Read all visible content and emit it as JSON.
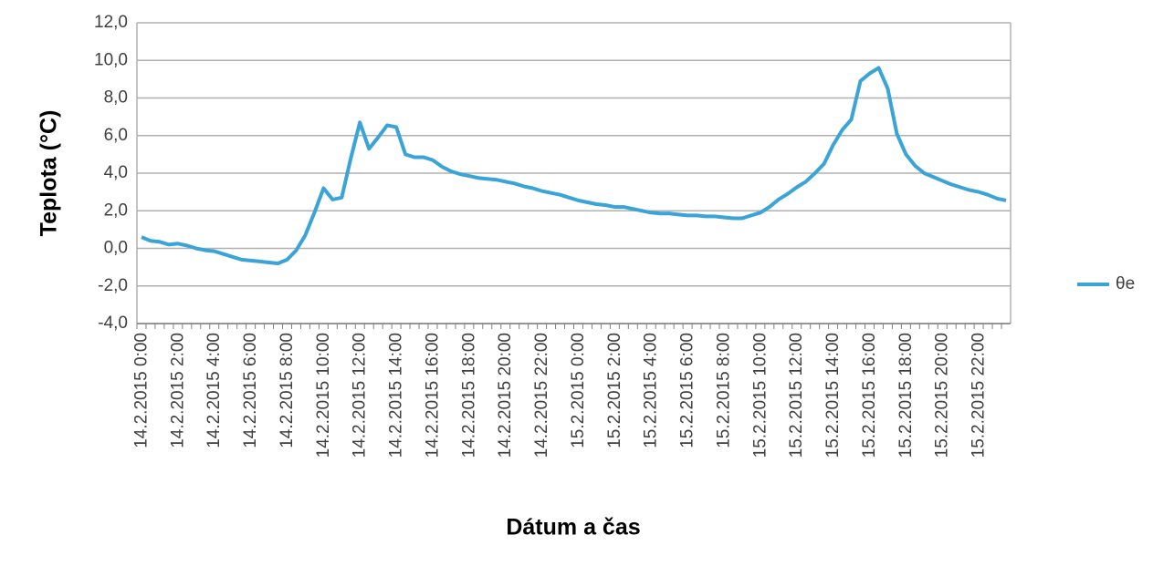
{
  "chart_data": {
    "type": "line",
    "y_label": "Teplota (°C)",
    "x_label": "Dátum a čas",
    "categories": [
      "14.2.2015 0:00",
      null,
      null,
      null,
      "14.2.2015 2:00",
      null,
      null,
      null,
      "14.2.2015 4:00",
      null,
      null,
      null,
      "14.2.2015 6:00",
      null,
      null,
      null,
      "14.2.2015 8:00",
      null,
      null,
      null,
      "14.2.2015 10:00",
      null,
      null,
      null,
      "14.2.2015 12:00",
      null,
      null,
      null,
      "14.2.2015 14:00",
      null,
      null,
      null,
      "14.2.2015 16:00",
      null,
      null,
      null,
      "14.2.2015 18:00",
      null,
      null,
      null,
      "14.2.2015 20:00",
      null,
      null,
      null,
      "14.2.2015 22:00",
      null,
      null,
      null,
      "15.2.2015 0:00",
      null,
      null,
      null,
      "15.2.2015 2:00",
      null,
      null,
      null,
      "15.2.2015 4:00",
      null,
      null,
      null,
      "15.2.2015 6:00",
      null,
      null,
      null,
      "15.2.2015 8:00",
      null,
      null,
      null,
      "15.2.2015 10:00",
      null,
      null,
      null,
      "15.2.2015 12:00",
      null,
      null,
      null,
      "15.2.2015 14:00",
      null,
      null,
      null,
      "15.2.2015 16:00",
      null,
      null,
      null,
      "15.2.2015 18:00",
      null,
      null,
      null,
      "15.2.2015 20:00",
      null,
      null,
      null,
      "15.2.2015 22:00",
      null,
      null,
      null
    ],
    "series": [
      {
        "name": "θe",
        "color": "#3aa3d8",
        "values": [
          0.6,
          0.4,
          0.35,
          0.2,
          0.25,
          0.15,
          0.0,
          -0.1,
          -0.15,
          -0.3,
          -0.45,
          -0.6,
          -0.65,
          -0.7,
          -0.75,
          -0.8,
          -0.6,
          -0.1,
          0.7,
          1.9,
          3.2,
          2.6,
          2.7,
          4.8,
          6.7,
          5.3,
          5.9,
          6.55,
          6.45,
          5.0,
          4.85,
          4.85,
          4.7,
          4.35,
          4.1,
          3.95,
          3.85,
          3.75,
          3.7,
          3.65,
          3.55,
          3.45,
          3.3,
          3.2,
          3.05,
          2.95,
          2.85,
          2.7,
          2.55,
          2.45,
          2.35,
          2.3,
          2.2,
          2.2,
          2.1,
          2.0,
          1.9,
          1.85,
          1.85,
          1.8,
          1.75,
          1.75,
          1.7,
          1.7,
          1.65,
          1.6,
          1.6,
          1.75,
          1.9,
          2.2,
          2.6,
          2.9,
          3.25,
          3.55,
          4.0,
          4.5,
          5.5,
          6.3,
          6.85,
          8.9,
          9.3,
          9.6,
          8.5,
          6.1,
          5.0,
          4.4,
          4.0,
          3.8,
          3.6,
          3.4,
          3.25,
          3.1,
          3.0,
          2.85,
          2.65,
          2.55
        ]
      }
    ],
    "ylim": [
      -4,
      12
    ],
    "yticks": [
      {
        "value": -4,
        "label": "-4,0"
      },
      {
        "value": -2,
        "label": "-2,0"
      },
      {
        "value": 0,
        "label": "0,0"
      },
      {
        "value": 2,
        "label": "2,0"
      },
      {
        "value": 4,
        "label": "4,0"
      },
      {
        "value": 6,
        "label": "6,0"
      },
      {
        "value": 8,
        "label": "8,0"
      },
      {
        "value": 10,
        "label": "10,0"
      },
      {
        "value": 12,
        "label": "12,0"
      }
    ],
    "grid": true,
    "legend": "right"
  }
}
